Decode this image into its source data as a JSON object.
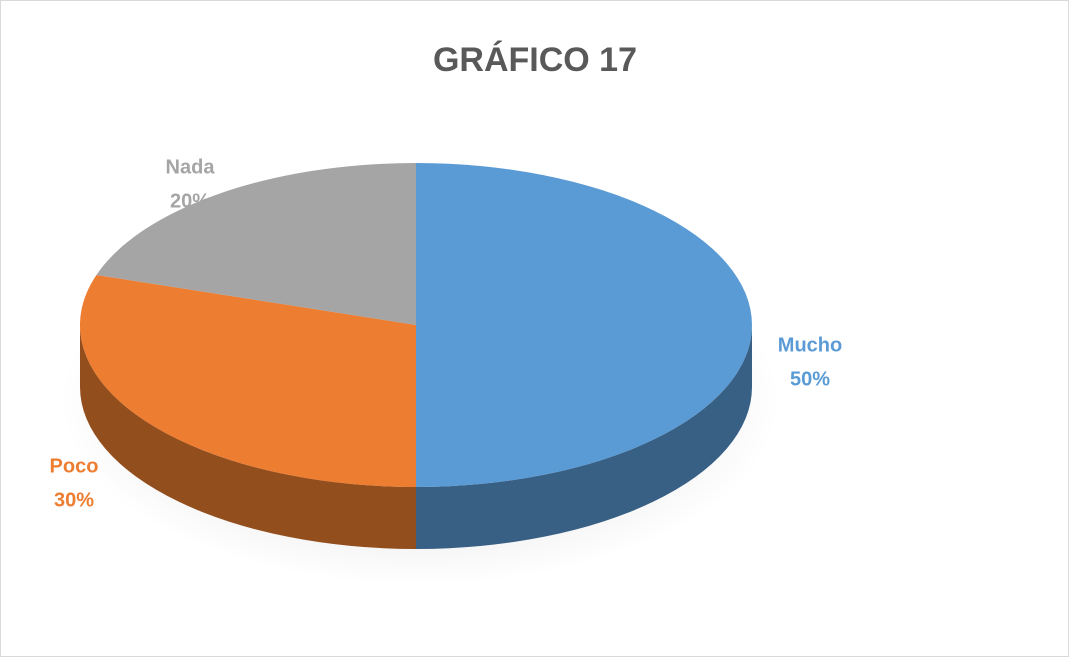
{
  "chart_data": {
    "type": "pie",
    "title": "GRÁFICO 17",
    "categories": [
      "Mucho",
      "Poco",
      "Nada"
    ],
    "values": [
      50,
      30,
      20
    ],
    "value_labels": [
      "50%",
      "30%",
      "20%"
    ],
    "colors": [
      "#5b9bd5",
      "#ed7d31",
      "#a5a5a5"
    ]
  }
}
